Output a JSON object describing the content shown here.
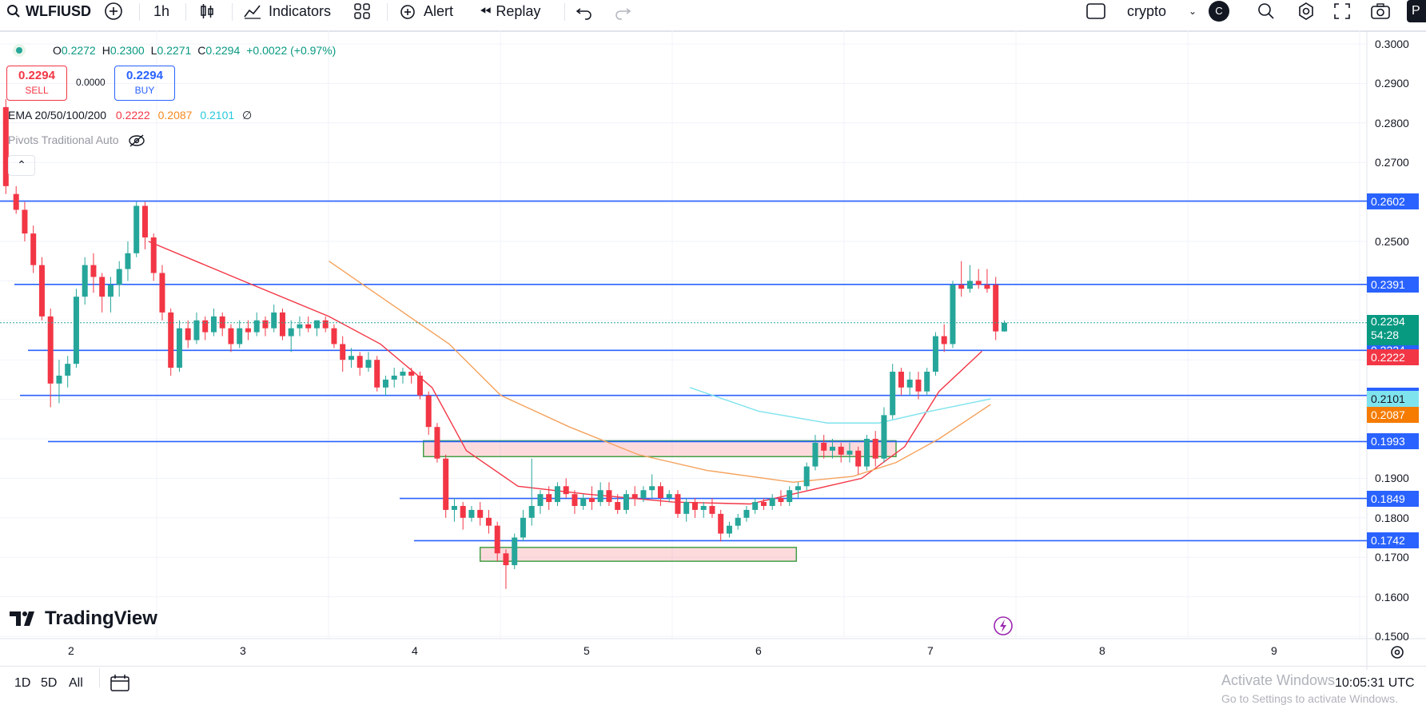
{
  "toolbar": {
    "symbol": "WLFIUSD",
    "interval": "1h",
    "indicators_label": "Indicators",
    "alert_label": "Alert",
    "replay_label": "Replay",
    "account_name": "crypto",
    "account_avatar": "C",
    "publish_label": "P"
  },
  "legend": {
    "o_label": "O",
    "o_value": "0.2272",
    "h_label": "H",
    "h_value": "0.2300",
    "l_label": "L",
    "l_value": "0.2271",
    "c_label": "C",
    "c_value": "0.2294",
    "change": "+0.0022 (+0.97%)"
  },
  "trade": {
    "sell_price": "0.2294",
    "sell_label": "SELL",
    "spread": "0.0000",
    "buy_price": "0.2294",
    "buy_label": "BUY"
  },
  "ema": {
    "label": "EMA 20/50/100/200",
    "ema20": "0.2222",
    "ema50": "0.2087",
    "ema100": "0.2101",
    "ema200": "∅"
  },
  "pivots": {
    "label": "Pivots Traditional Auto"
  },
  "price_axis": {
    "ticks": [
      "0.3000",
      "0.2900",
      "0.2800",
      "0.2700",
      "0.2500",
      "0.1900",
      "0.1800",
      "0.1700",
      "0.1600",
      "0.1500"
    ],
    "level_labels": [
      "0.2602",
      "0.2391",
      "0.2224",
      "0.2110",
      "0.1993",
      "0.1849",
      "0.1742"
    ],
    "current_price": "0.2294",
    "countdown": "54:28",
    "ema20_label": "0.2222",
    "ema100_label": "0.2101",
    "ema50_label": "0.2087"
  },
  "time_axis": {
    "ticks": [
      "2",
      "3",
      "4",
      "5",
      "6",
      "7",
      "8",
      "9"
    ]
  },
  "brand": {
    "name": "TradingView"
  },
  "bottom": {
    "range_1d": "1D",
    "range_5d": "5D",
    "range_all": "All",
    "clock": "10:05:31 UTC",
    "watermark_title": "Activate Windows",
    "watermark_sub": "Go to Settings to activate Windows."
  },
  "colors": {
    "up": "#26a69a",
    "down": "#f23645",
    "level": "#2962ff",
    "ema20": "#f23645",
    "ema50": "#f5a25c",
    "ema100": "#7fe3ee"
  },
  "chart_data": {
    "type": "candlestick",
    "ylim": [
      0.15,
      0.3
    ],
    "x_ticks": [
      "2",
      "3",
      "4",
      "5",
      "6",
      "7",
      "8",
      "9"
    ],
    "horizontal_levels": [
      0.2602,
      0.2391,
      0.2224,
      0.211,
      0.1993,
      0.1849,
      0.1742
    ],
    "zones": [
      {
        "from_day": 4.05,
        "to_day": 6.8,
        "low": 0.1955,
        "high": 0.1995
      },
      {
        "from_day": 4.38,
        "to_day": 6.22,
        "low": 0.169,
        "high": 0.1725
      }
    ],
    "series": [
      {
        "name": "EMA 20",
        "values": [
          [
            2.45,
            0.25
          ],
          [
            3.0,
            0.24
          ],
          [
            3.5,
            0.231
          ],
          [
            3.8,
            0.224
          ],
          [
            4.1,
            0.213
          ],
          [
            4.3,
            0.197
          ],
          [
            4.6,
            0.188
          ],
          [
            5.0,
            0.186
          ],
          [
            5.5,
            0.184
          ],
          [
            5.95,
            0.1835
          ],
          [
            6.3,
            0.187
          ],
          [
            6.6,
            0.19
          ],
          [
            6.85,
            0.198
          ],
          [
            7.05,
            0.212
          ],
          [
            7.3,
            0.2222
          ]
        ]
      },
      {
        "name": "EMA 50",
        "values": [
          [
            3.5,
            0.245
          ],
          [
            3.9,
            0.233
          ],
          [
            4.2,
            0.224
          ],
          [
            4.5,
            0.211
          ],
          [
            4.9,
            0.203
          ],
          [
            5.3,
            0.196
          ],
          [
            5.7,
            0.192
          ],
          [
            6.2,
            0.189
          ],
          [
            6.55,
            0.1905
          ],
          [
            6.8,
            0.194
          ],
          [
            7.05,
            0.2
          ],
          [
            7.35,
            0.2087
          ]
        ]
      },
      {
        "name": "EMA 100",
        "values": [
          [
            5.6,
            0.213
          ],
          [
            6.0,
            0.207
          ],
          [
            6.4,
            0.204
          ],
          [
            6.7,
            0.204
          ],
          [
            7.0,
            0.207
          ],
          [
            7.35,
            0.2101
          ]
        ]
      }
    ],
    "candles": [
      [
        1.62,
        0.284,
        0.286,
        0.262,
        0.264
      ],
      [
        1.68,
        0.262,
        0.264,
        0.257,
        0.258
      ],
      [
        1.73,
        0.258,
        0.26,
        0.25,
        0.252
      ],
      [
        1.78,
        0.252,
        0.254,
        0.242,
        0.244
      ],
      [
        1.83,
        0.244,
        0.246,
        0.23,
        0.231
      ],
      [
        1.88,
        0.231,
        0.233,
        0.208,
        0.214
      ],
      [
        1.93,
        0.214,
        0.22,
        0.209,
        0.216
      ],
      [
        1.98,
        0.216,
        0.221,
        0.213,
        0.219
      ],
      [
        2.03,
        0.219,
        0.238,
        0.218,
        0.236
      ],
      [
        2.08,
        0.236,
        0.246,
        0.234,
        0.244
      ],
      [
        2.13,
        0.244,
        0.247,
        0.237,
        0.241
      ],
      [
        2.18,
        0.241,
        0.242,
        0.232,
        0.236
      ],
      [
        2.23,
        0.236,
        0.241,
        0.232,
        0.239
      ],
      [
        2.28,
        0.239,
        0.245,
        0.236,
        0.243
      ],
      [
        2.33,
        0.243,
        0.25,
        0.24,
        0.247
      ],
      [
        2.38,
        0.247,
        0.26,
        0.246,
        0.259
      ],
      [
        2.43,
        0.259,
        0.26,
        0.248,
        0.251
      ],
      [
        2.48,
        0.251,
        0.252,
        0.24,
        0.242
      ],
      [
        2.53,
        0.242,
        0.244,
        0.23,
        0.232
      ],
      [
        2.58,
        0.232,
        0.233,
        0.216,
        0.218
      ],
      [
        2.63,
        0.218,
        0.23,
        0.217,
        0.228
      ],
      [
        2.68,
        0.228,
        0.23,
        0.223,
        0.225
      ],
      [
        2.73,
        0.225,
        0.232,
        0.224,
        0.23
      ],
      [
        2.78,
        0.23,
        0.231,
        0.225,
        0.227
      ],
      [
        2.83,
        0.227,
        0.233,
        0.226,
        0.231
      ],
      [
        2.88,
        0.231,
        0.232,
        0.226,
        0.228
      ],
      [
        2.93,
        0.228,
        0.229,
        0.222,
        0.224
      ],
      [
        2.98,
        0.224,
        0.23,
        0.223,
        0.228
      ],
      [
        3.03,
        0.228,
        0.23,
        0.225,
        0.227
      ],
      [
        3.08,
        0.227,
        0.232,
        0.226,
        0.23
      ],
      [
        3.13,
        0.23,
        0.231,
        0.226,
        0.228
      ],
      [
        3.18,
        0.228,
        0.234,
        0.227,
        0.232
      ],
      [
        3.23,
        0.232,
        0.233,
        0.225,
        0.226
      ],
      [
        3.28,
        0.226,
        0.23,
        0.222,
        0.228
      ],
      [
        3.33,
        0.228,
        0.231,
        0.226,
        0.229
      ],
      [
        3.38,
        0.229,
        0.231,
        0.227,
        0.228
      ],
      [
        3.43,
        0.228,
        0.23,
        0.226,
        0.23
      ],
      [
        3.48,
        0.23,
        0.231,
        0.227,
        0.228
      ],
      [
        3.53,
        0.228,
        0.229,
        0.223,
        0.224
      ],
      [
        3.58,
        0.224,
        0.226,
        0.217,
        0.22
      ],
      [
        3.63,
        0.22,
        0.223,
        0.218,
        0.221
      ],
      [
        3.68,
        0.221,
        0.222,
        0.216,
        0.218
      ],
      [
        3.73,
        0.218,
        0.222,
        0.217,
        0.22
      ],
      [
        3.78,
        0.22,
        0.221,
        0.212,
        0.213
      ],
      [
        3.83,
        0.213,
        0.216,
        0.211,
        0.215
      ],
      [
        3.88,
        0.215,
        0.218,
        0.213,
        0.216
      ],
      [
        3.93,
        0.216,
        0.218,
        0.214,
        0.217
      ],
      [
        3.98,
        0.217,
        0.218,
        0.214,
        0.216
      ],
      [
        4.03,
        0.216,
        0.217,
        0.21,
        0.211
      ],
      [
        4.08,
        0.211,
        0.212,
        0.201,
        0.203
      ],
      [
        4.13,
        0.203,
        0.204,
        0.194,
        0.195
      ],
      [
        4.18,
        0.195,
        0.196,
        0.18,
        0.182
      ],
      [
        4.23,
        0.182,
        0.185,
        0.179,
        0.183
      ],
      [
        4.28,
        0.183,
        0.184,
        0.177,
        0.18
      ],
      [
        4.33,
        0.18,
        0.183,
        0.179,
        0.182
      ],
      [
        4.38,
        0.182,
        0.184,
        0.178,
        0.18
      ],
      [
        4.43,
        0.18,
        0.182,
        0.176,
        0.178
      ],
      [
        4.48,
        0.178,
        0.179,
        0.169,
        0.171
      ],
      [
        4.53,
        0.171,
        0.172,
        0.162,
        0.168
      ],
      [
        4.58,
        0.168,
        0.176,
        0.167,
        0.175
      ],
      [
        4.63,
        0.175,
        0.182,
        0.174,
        0.18
      ],
      [
        4.68,
        0.18,
        0.195,
        0.178,
        0.183
      ],
      [
        4.73,
        0.183,
        0.187,
        0.181,
        0.186
      ],
      [
        4.78,
        0.186,
        0.188,
        0.182,
        0.184
      ],
      [
        4.83,
        0.184,
        0.189,
        0.183,
        0.188
      ],
      [
        4.88,
        0.188,
        0.19,
        0.185,
        0.186
      ],
      [
        4.93,
        0.186,
        0.187,
        0.181,
        0.183
      ],
      [
        4.98,
        0.183,
        0.186,
        0.182,
        0.185
      ],
      [
        5.03,
        0.185,
        0.188,
        0.182,
        0.184
      ],
      [
        5.08,
        0.184,
        0.189,
        0.183,
        0.187
      ],
      [
        5.13,
        0.187,
        0.189,
        0.183,
        0.184
      ],
      [
        5.18,
        0.184,
        0.186,
        0.181,
        0.182
      ],
      [
        5.23,
        0.182,
        0.187,
        0.181,
        0.186
      ],
      [
        5.28,
        0.186,
        0.188,
        0.183,
        0.185
      ],
      [
        5.33,
        0.185,
        0.188,
        0.184,
        0.187
      ],
      [
        5.38,
        0.187,
        0.191,
        0.185,
        0.188
      ],
      [
        5.43,
        0.188,
        0.189,
        0.183,
        0.185
      ],
      [
        5.48,
        0.185,
        0.187,
        0.184,
        0.186
      ],
      [
        5.53,
        0.186,
        0.187,
        0.18,
        0.181
      ],
      [
        5.58,
        0.181,
        0.185,
        0.179,
        0.184
      ],
      [
        5.63,
        0.184,
        0.185,
        0.18,
        0.182
      ],
      [
        5.68,
        0.182,
        0.184,
        0.18,
        0.183
      ],
      [
        5.73,
        0.183,
        0.185,
        0.18,
        0.181
      ],
      [
        5.78,
        0.181,
        0.182,
        0.174,
        0.176
      ],
      [
        5.83,
        0.176,
        0.179,
        0.175,
        0.178
      ],
      [
        5.88,
        0.178,
        0.181,
        0.177,
        0.18
      ],
      [
        5.93,
        0.18,
        0.183,
        0.179,
        0.182
      ],
      [
        5.98,
        0.182,
        0.185,
        0.181,
        0.184
      ],
      [
        6.03,
        0.184,
        0.185,
        0.182,
        0.183
      ],
      [
        6.08,
        0.183,
        0.186,
        0.182,
        0.185
      ],
      [
        6.13,
        0.185,
        0.187,
        0.183,
        0.184
      ],
      [
        6.18,
        0.184,
        0.188,
        0.183,
        0.187
      ],
      [
        6.23,
        0.187,
        0.189,
        0.185,
        0.188
      ],
      [
        6.28,
        0.188,
        0.194,
        0.187,
        0.193
      ],
      [
        6.33,
        0.193,
        0.201,
        0.192,
        0.199
      ],
      [
        6.38,
        0.199,
        0.201,
        0.195,
        0.197
      ],
      [
        6.43,
        0.197,
        0.2,
        0.195,
        0.198
      ],
      [
        6.48,
        0.198,
        0.199,
        0.194,
        0.196
      ],
      [
        6.53,
        0.196,
        0.199,
        0.194,
        0.197
      ],
      [
        6.58,
        0.197,
        0.198,
        0.191,
        0.193
      ],
      [
        6.63,
        0.193,
        0.201,
        0.192,
        0.2
      ],
      [
        6.68,
        0.2,
        0.202,
        0.193,
        0.195
      ],
      [
        6.73,
        0.195,
        0.208,
        0.194,
        0.206
      ],
      [
        6.78,
        0.206,
        0.219,
        0.205,
        0.217
      ],
      [
        6.83,
        0.217,
        0.218,
        0.211,
        0.213
      ],
      [
        6.88,
        0.213,
        0.217,
        0.211,
        0.215
      ],
      [
        6.93,
        0.215,
        0.217,
        0.21,
        0.212
      ],
      [
        6.98,
        0.212,
        0.218,
        0.211,
        0.217
      ],
      [
        7.03,
        0.217,
        0.227,
        0.216,
        0.226
      ],
      [
        7.08,
        0.226,
        0.229,
        0.222,
        0.224
      ],
      [
        7.13,
        0.224,
        0.24,
        0.223,
        0.239
      ],
      [
        7.18,
        0.239,
        0.245,
        0.236,
        0.238
      ],
      [
        7.23,
        0.238,
        0.244,
        0.237,
        0.24
      ],
      [
        7.28,
        0.24,
        0.243,
        0.238,
        0.239
      ],
      [
        7.33,
        0.239,
        0.243,
        0.237,
        0.238
      ],
      [
        7.38,
        0.239,
        0.241,
        0.225,
        0.2272
      ],
      [
        7.43,
        0.2272,
        0.23,
        0.2271,
        0.2294
      ]
    ]
  }
}
